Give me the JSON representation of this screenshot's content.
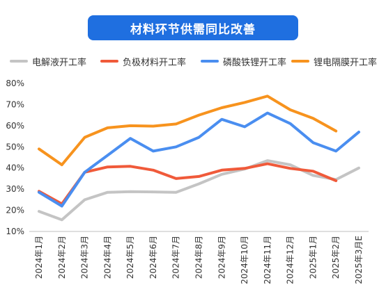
{
  "title": "材料环节供需同比改善",
  "colors": {
    "title_bg": "#1f6fe0",
    "gray": "#c4c4c4",
    "red": "#f05a3a",
    "blue": "#4a8ef0",
    "orange": "#f7931e"
  },
  "chart_data": {
    "type": "line",
    "title": "材料环节供需同比改善",
    "xlabel": "",
    "ylabel": "",
    "ylim": [
      10,
      80
    ],
    "yticks": [
      "10%",
      "20%",
      "30%",
      "40%",
      "50%",
      "60%",
      "70%",
      "80%"
    ],
    "grid": false,
    "legend_position": "top",
    "categories": [
      "2024年1月",
      "2024年2月",
      "2024年3月",
      "2024年4月",
      "2024年5月",
      "2024年6月",
      "2024年7月",
      "2024年8月",
      "2024年9月",
      "2024年10月",
      "2024年11月",
      "2024年12月",
      "2025年1月",
      "2025年2月",
      "2025年3月E"
    ],
    "series": [
      {
        "name": "电解液开工率",
        "color": "#c4c4c4",
        "values": [
          19.5,
          15.5,
          25,
          28.5,
          28.8,
          28.7,
          28.5,
          32.5,
          37,
          39.5,
          43.5,
          41.5,
          36.5,
          34.5,
          40
        ]
      },
      {
        "name": "负极材料开工率",
        "color": "#f05a3a",
        "values": [
          29,
          23,
          38,
          40.5,
          40.8,
          39,
          35,
          36,
          39,
          39.8,
          42,
          39.8,
          38.5,
          34,
          null
        ]
      },
      {
        "name": "磷酸铁锂开工率",
        "color": "#4a8ef0",
        "values": [
          28.5,
          22,
          38,
          46,
          54,
          48,
          50,
          54.5,
          63,
          59.5,
          66,
          61,
          52,
          48,
          57
        ]
      },
      {
        "name": "锂电隔膜开工率",
        "color": "#f7931e",
        "values": [
          49,
          41.5,
          54.5,
          59,
          60,
          59.8,
          60.8,
          65,
          68.5,
          71,
          74,
          67.5,
          63.5,
          57.5,
          null
        ]
      }
    ]
  }
}
